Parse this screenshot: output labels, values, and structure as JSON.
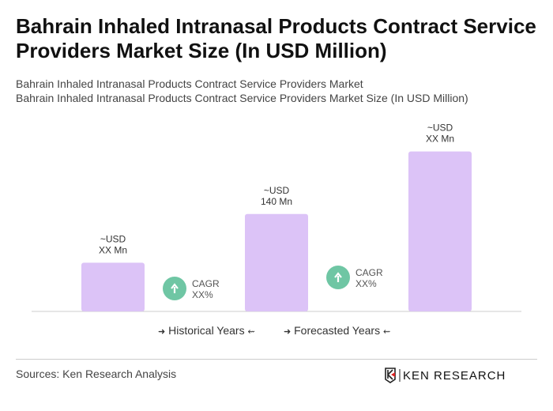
{
  "title": "Bahrain Inhaled Intranasal Products Contract Service Providers Market Size (In USD Million)",
  "subtitle1": "Bahrain Inhaled Intranasal Products Contract Service Providers Market",
  "subtitle2": "Bahrain Inhaled Intranasal Products Contract Service Providers Market Size (In USD Million)",
  "legend": {
    "historical": "Historical Years",
    "forecasted": "Forecasted Years",
    "arrow_right": "➜",
    "arrow_left": "⇜"
  },
  "sources": "Sources: Ken Research Analysis",
  "logo_text": "KEN RESEARCH",
  "colors": {
    "bar": "#dcc3f7",
    "cagr": "#6fc6a4",
    "axis": "#cccccc"
  },
  "chart_data": {
    "type": "bar",
    "values": [
      70,
      140,
      230
    ],
    "bar_labels": [
      [
        "~USD",
        "XX Mn"
      ],
      [
        "~USD",
        "140 Mn"
      ],
      [
        "~USD",
        "XX Mn"
      ]
    ],
    "cagr": [
      {
        "label": "CAGR",
        "value": "XX%"
      },
      {
        "label": "CAGR",
        "value": "XX%"
      }
    ],
    "grid": false
  }
}
